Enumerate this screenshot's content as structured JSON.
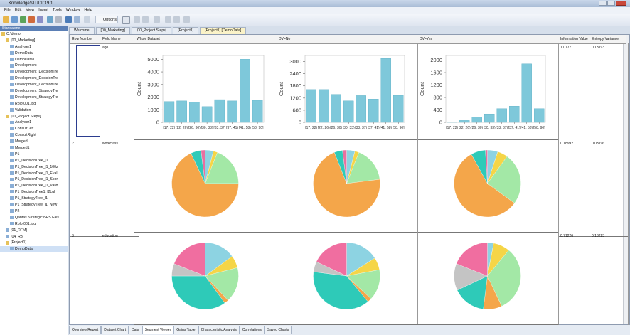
{
  "window": {
    "title": "KnowledgeSTUDIO 9.1"
  },
  "menu": [
    "File",
    "Edit",
    "View",
    "Insert",
    "Tools",
    "Window",
    "Help"
  ],
  "toolbar": {
    "options": "Options"
  },
  "sidebar": {
    "header": "Standalone",
    "tree": [
      {
        "label": "C:\\demo",
        "children": [
          {
            "label": "[00_Marketing]",
            "children": [
              {
                "label": "Analyser1"
              },
              {
                "label": "DemoData"
              },
              {
                "label": "DemoData1"
              },
              {
                "label": "Development"
              },
              {
                "label": "Development_DecisionTre"
              },
              {
                "label": "Development_DecisionTre"
              },
              {
                "label": "Development_DecisionTre"
              },
              {
                "label": "Development_StrategyTre"
              },
              {
                "label": "Development_StrategyTre"
              },
              {
                "label": "Rplot001.jpg"
              },
              {
                "label": "Validation"
              }
            ]
          },
          {
            "label": "[00_Project Steps]",
            "children": [
              {
                "label": "Analyser1"
              },
              {
                "label": "ConsultLeft"
              },
              {
                "label": "ConsultRight"
              },
              {
                "label": "Merged"
              },
              {
                "label": "Merged1"
              },
              {
                "label": "P1"
              },
              {
                "label": "P1_DecisionTree_l1"
              },
              {
                "label": "P1_DecisionTree_l1_100z"
              },
              {
                "label": "P1_DecisionTree_l1_Eval"
              },
              {
                "label": "P1_DecisionTree_l1_Scori"
              },
              {
                "label": "P1_DecisionTree_l1_Valid"
              },
              {
                "label": "P1_DecisionTree1_l2Lul"
              },
              {
                "label": "P1_StrategyTree_l1"
              },
              {
                "label": "P1_StrategyTree_l1_New"
              },
              {
                "label": "P2"
              },
              {
                "label": "Qantas Strategic NPS Fals"
              },
              {
                "label": "Rplot001.jpg"
              }
            ]
          },
          {
            "label": "[01_RFM]"
          },
          {
            "label": "[04_R3]"
          },
          {
            "label": "[Project1]",
            "children": [
              {
                "label": "DemoData"
              }
            ]
          }
        ]
      }
    ]
  },
  "tabs": [
    "Welcome",
    "[00_Marketing]",
    "[00_Project Steps]",
    "[Project1]",
    "[Project1] [DemoData]"
  ],
  "table": {
    "columns": [
      "Row Number",
      "Field Name",
      "Whole Dataset",
      "DV=No",
      "DV=Yes",
      "Information Value",
      "Entropy Variance"
    ],
    "rows": [
      {
        "row_number": 1,
        "field": "age",
        "information_value": 1.07771,
        "entropy_variance": 0.13193,
        "charts": [
          {
            "type": "bar",
            "y_label": "Count",
            "color": "#7ec8da",
            "categories": [
              "[17, 22)",
              "[22, 26)",
              "[26, 30)",
              "[30, 33)",
              "[33, 37)",
              "[37, 41)",
              "[41, 58)",
              "[58, 90]"
            ],
            "values": [
              1650,
              1700,
              1600,
              1250,
              1800,
              1700,
              5000,
              1750
            ],
            "ylim": [
              0,
              5300
            ],
            "yticks": [
              0,
              1000,
              2000,
              3000,
              4000,
              5000
            ]
          },
          {
            "type": "bar",
            "y_label": "Count",
            "color": "#7ec8da",
            "categories": [
              "[17, 22)",
              "[22, 26)",
              "[26, 30)",
              "[30, 33)",
              "[33, 37)",
              "[37, 41)",
              "[41, 58)",
              "[58, 90]"
            ],
            "values": [
              1620,
              1620,
              1380,
              1060,
              1320,
              1150,
              3150,
              1330
            ],
            "ylim": [
              0,
              3300
            ],
            "yticks": [
              0,
              600,
              1200,
              1800,
              2400,
              3000
            ]
          },
          {
            "type": "bar",
            "y_label": "Count",
            "color": "#7ec8da",
            "categories": [
              "[17, 22)",
              "[22, 26)",
              "[26, 30)",
              "[30, 33)",
              "[33, 37)",
              "[37, 41)",
              "[41, 58)",
              "[58, 90]"
            ],
            "values": [
              10,
              60,
              170,
              270,
              440,
              520,
              1880,
              440
            ],
            "ylim": [
              0,
              2150
            ],
            "yticks": [
              0,
              400,
              800,
              1200,
              1600,
              2000
            ]
          }
        ]
      },
      {
        "row_number": 2,
        "field": "workclass",
        "information_value": 0.18992,
        "entropy_variance": 0.03196,
        "charts": [
          {
            "type": "pie",
            "values": [
              4,
              2,
              19,
              68,
              5,
              2
            ],
            "colors": [
              "#8dd3e2",
              "#f5d547",
              "#a3e8a6",
              "#f4a64a",
              "#2ecab8",
              "#e86fa0"
            ]
          },
          {
            "type": "pie",
            "values": [
              4,
              2,
              17,
              71,
              4,
              2
            ],
            "colors": [
              "#8dd3e2",
              "#f5d547",
              "#a3e8a6",
              "#f4a64a",
              "#2ecab8",
              "#e86fa0"
            ]
          },
          {
            "type": "pie",
            "values": [
              5,
              5,
              25,
              57,
              7,
              1
            ],
            "colors": [
              "#8dd3e2",
              "#f5d547",
              "#a3e8a6",
              "#f4a64a",
              "#2ecab8",
              "#e86fa0"
            ]
          }
        ]
      },
      {
        "row_number": 3,
        "field": "education",
        "information_value": 0.71226,
        "entropy_variance": 0.13223,
        "charts": [
          {
            "type": "pie",
            "values": [
              15,
              6,
              17,
              2,
              35,
              6,
              19
            ],
            "colors": [
              "#8dd3e2",
              "#f5d547",
              "#a3e8a6",
              "#f4a64a",
              "#2ecab8",
              "#c4c4c4",
              "#f06ea0"
            ]
          },
          {
            "type": "pie",
            "values": [
              16,
              6,
              15,
              2,
              38,
              5,
              18
            ],
            "colors": [
              "#8dd3e2",
              "#f5d547",
              "#a3e8a6",
              "#f4a64a",
              "#2ecab8",
              "#c4c4c4",
              "#f06ea0"
            ]
          },
          {
            "type": "pie",
            "values": [
              3,
              8,
              32,
              9,
              16,
              13,
              19
            ],
            "colors": [
              "#8dd3e2",
              "#f5d547",
              "#a3e8a6",
              "#f4a64a",
              "#2ecab8",
              "#c4c4c4",
              "#f06ea0"
            ]
          }
        ]
      }
    ]
  },
  "bottom_tabs": [
    "Overview Report",
    "Dataset Chart",
    "Data",
    "Segment Viewer",
    "Gains Table",
    "Characteristic Analysis",
    "Correlations",
    "Saved Charts"
  ]
}
